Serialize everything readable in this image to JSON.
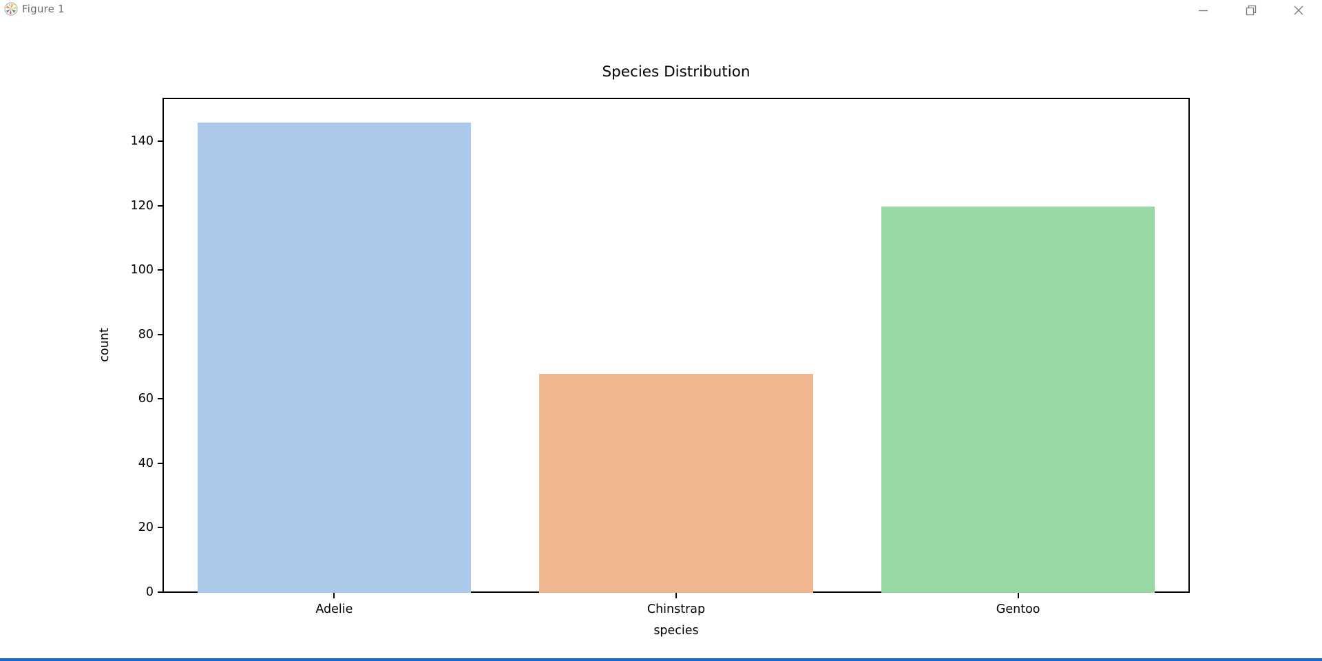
{
  "window": {
    "title": "Figure 1",
    "controls": {
      "minimize": "minimize",
      "restore": "restore",
      "close": "close"
    }
  },
  "chart_data": {
    "type": "bar",
    "title": "Species Distribution",
    "xlabel": "species",
    "ylabel": "count",
    "categories": [
      "Adelie",
      "Chinstrap",
      "Gentoo"
    ],
    "values": [
      146,
      68,
      120
    ],
    "bar_colors": [
      "#abc9ea",
      "#f0b68d",
      "#97d8a4"
    ],
    "yticks": [
      0,
      20,
      40,
      60,
      80,
      100,
      120,
      140
    ],
    "ylim": [
      0,
      153.3
    ],
    "grid": false,
    "legend": null,
    "spine_color": "#000000"
  },
  "colors": {
    "taskbar_blue": "#1b66c9",
    "titlebar_text": "#6e6e6e"
  }
}
